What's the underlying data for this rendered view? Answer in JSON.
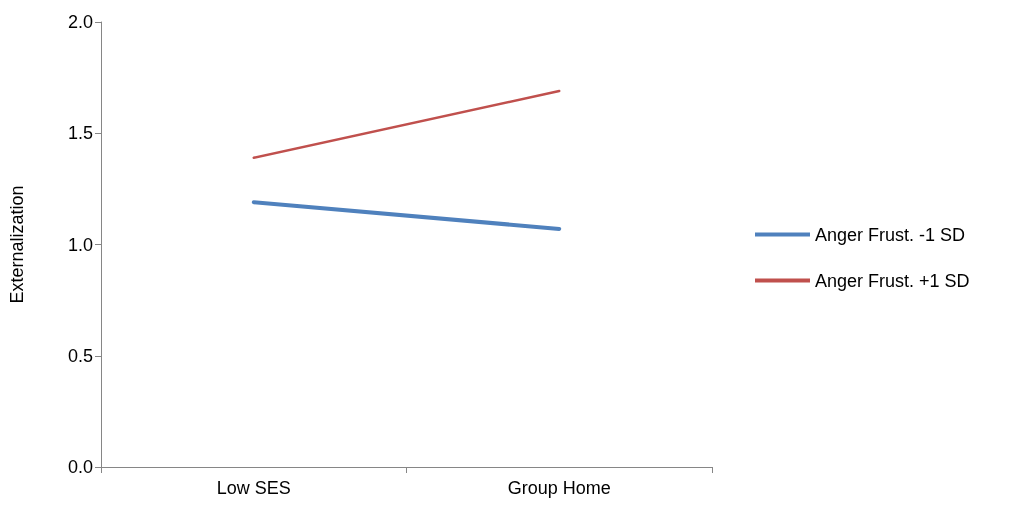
{
  "chart_data": {
    "type": "line",
    "ylabel": "Externalization",
    "categories": [
      "Low SES",
      "Group Home"
    ],
    "series": [
      {
        "name": "Anger Frust. -1 SD",
        "color": "#4f81bd",
        "values": [
          1.19,
          1.07
        ]
      },
      {
        "name": "Anger Frust. +1 SD",
        "color": "#c0504d",
        "values": [
          1.39,
          1.69
        ]
      }
    ],
    "ylim": [
      0,
      2
    ],
    "yticks": [
      {
        "value": 0,
        "label": "0.0"
      },
      0.5,
      {
        "value": 1,
        "label": "1.0"
      },
      1.5,
      {
        "value": 2,
        "label": "2.0"
      }
    ],
    "grid": false,
    "legend": "right",
    "marker": "none",
    "line_style": "solid"
  }
}
